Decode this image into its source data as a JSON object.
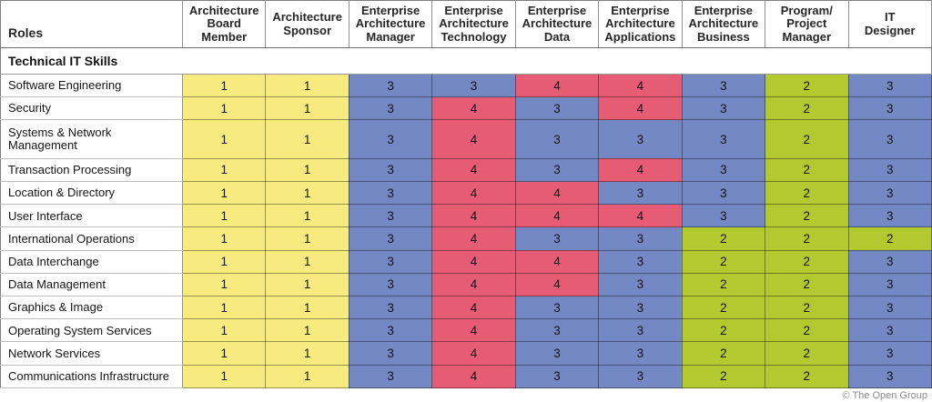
{
  "header": {
    "roles_label": "Roles",
    "columns_display": [
      "Architecture\nBoard\nMember",
      "Architecture\nSponsor",
      "Enterprise\nArchitecture\nManager",
      "Enterprise\nArchitecture\nTechnology",
      "Enterprise\nArchitecture\nData",
      "Enterprise\nArchitecture\nApplications",
      "Enterprise\nArchitecture\nBusiness",
      "Program/\nProject\nManager",
      "IT\nDesigner"
    ]
  },
  "section_title": "Technical IT Skills",
  "row_labels_display": [
    "Software Engineering",
    "Security",
    "Systems & Network\nManagement",
    "Transaction Processing",
    "Location & Directory",
    "User Interface",
    "International Operations",
    "Data Interchange",
    "Data Management",
    "Graphics & Image",
    "Operating System Services",
    "Network Services",
    "Communications Infrastructure"
  ],
  "footer": {
    "copyright": "© The Open Group"
  },
  "chart_data": {
    "type": "heatmap",
    "title": "Technical IT Skills",
    "columns": [
      "Architecture Board Member",
      "Architecture Sponsor",
      "Enterprise Architecture Manager",
      "Enterprise Architecture Technology",
      "Enterprise Architecture Data",
      "Enterprise Architecture Applications",
      "Enterprise Architecture Business",
      "Program/Project Manager",
      "IT Designer"
    ],
    "rows": [
      "Software Engineering",
      "Security",
      "Systems & Network Management",
      "Transaction Processing",
      "Location & Directory",
      "User Interface",
      "International Operations",
      "Data Interchange",
      "Data Management",
      "Graphics & Image",
      "Operating System Services",
      "Network Services",
      "Communications Infrastructure"
    ],
    "values": [
      [
        1,
        1,
        3,
        3,
        4,
        4,
        3,
        2,
        3
      ],
      [
        1,
        1,
        3,
        4,
        3,
        4,
        3,
        2,
        3
      ],
      [
        1,
        1,
        3,
        4,
        3,
        3,
        3,
        2,
        3
      ],
      [
        1,
        1,
        3,
        4,
        3,
        4,
        3,
        2,
        3
      ],
      [
        1,
        1,
        3,
        4,
        4,
        3,
        3,
        2,
        3
      ],
      [
        1,
        1,
        3,
        4,
        4,
        4,
        3,
        2,
        3
      ],
      [
        1,
        1,
        3,
        4,
        3,
        3,
        2,
        2,
        2
      ],
      [
        1,
        1,
        3,
        4,
        4,
        3,
        2,
        2,
        3
      ],
      [
        1,
        1,
        3,
        4,
        4,
        3,
        2,
        2,
        3
      ],
      [
        1,
        1,
        3,
        4,
        3,
        3,
        2,
        2,
        3
      ],
      [
        1,
        1,
        3,
        4,
        3,
        3,
        2,
        2,
        3
      ],
      [
        1,
        1,
        3,
        4,
        3,
        3,
        2,
        2,
        3
      ],
      [
        1,
        1,
        3,
        4,
        3,
        3,
        2,
        2,
        3
      ]
    ],
    "value_color_map": {
      "1": "#F7EB7F",
      "2": "#B2C92F",
      "3": "#7489C4",
      "4": "#E55C74"
    }
  }
}
